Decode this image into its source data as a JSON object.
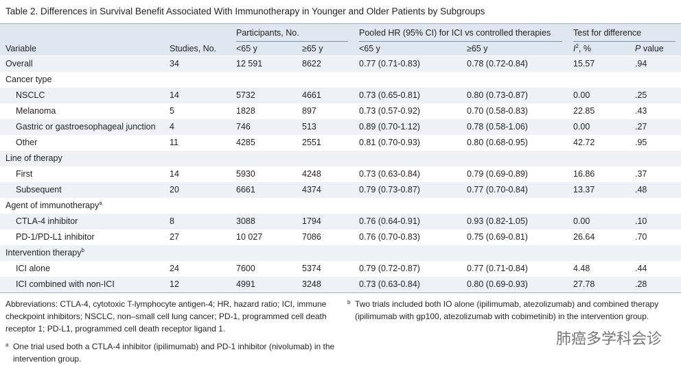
{
  "title": "Table 2. Differences in Survival Benefit Associated With Immunotherapy in Younger and Older Patients by Subgroups",
  "header": {
    "groups": [
      {
        "label": "Participants, No.",
        "from": 2,
        "to": 3
      },
      {
        "label": "Pooled HR (95% CI) for ICI vs controlled therapies",
        "from": 4,
        "to": 5
      },
      {
        "label": "Test for difference",
        "from": 6,
        "to": 7
      }
    ],
    "columns": [
      {
        "text": "Variable"
      },
      {
        "text": "Studies, No."
      },
      {
        "text": "<65 y"
      },
      {
        "text": "≥65 y"
      },
      {
        "text": "<65 y"
      },
      {
        "text": "≥65 y"
      },
      {
        "italic": "I",
        "sup": "2",
        "text": ", %"
      },
      {
        "italic": "P",
        "text": " value"
      }
    ]
  },
  "table": {
    "rows": [
      {
        "cells": [
          "Overall",
          "34",
          "12 591",
          "8622",
          "0.77 (0.71-0.83)",
          "0.78 (0.72-0.84)",
          "15.57",
          ".94"
        ]
      },
      {
        "section": "Cancer type"
      },
      {
        "cells": [
          "NSCLC",
          "14",
          "5732",
          "4661",
          "0.73 (0.65-0.81)",
          "0.80 (0.73-0.87)",
          "0.00",
          ".25"
        ]
      },
      {
        "cells": [
          "Melanoma",
          "5",
          "1828",
          "897",
          "0.73 (0.57-0.92)",
          "0.70 (0.58-0.83)",
          "22.85",
          ".43"
        ]
      },
      {
        "cells": [
          "Gastric or gastroesophageal junction",
          "4",
          "746",
          "513",
          "0.89 (0.70-1.12)",
          "0.78 (0.58-1.06)",
          "0.00",
          ".27"
        ]
      },
      {
        "cells": [
          "Other",
          "11",
          "4285",
          "2551",
          "0.81 (0.70-0.93)",
          "0.80 (0.68-0.95)",
          "42.72",
          ".95"
        ]
      },
      {
        "section": "Line of therapy"
      },
      {
        "cells": [
          "First",
          "14",
          "5930",
          "4248",
          "0.73 (0.63-0.84)",
          "0.79 (0.69-0.89)",
          "16.86",
          ".37"
        ]
      },
      {
        "cells": [
          "Subsequent",
          "20",
          "6661",
          "4374",
          "0.79 (0.73-0.87)",
          "0.77 (0.70-0.84)",
          "13.37",
          ".48"
        ]
      },
      {
        "section": "Agent of immunotherapy",
        "note": "a"
      },
      {
        "cells": [
          "CTLA-4 inhibitor",
          "8",
          "3088",
          "1794",
          "0.76 (0.64-0.91)",
          "0.93 (0.82-1.05)",
          "0.00",
          ".10"
        ]
      },
      {
        "cells": [
          "PD-1/PD-L1 inhibitor",
          "27",
          "10 027",
          "7086",
          "0.76 (0.70-0.83)",
          "0.75 (0.69-0.81)",
          "26.64",
          ".70"
        ]
      },
      {
        "section": "Intervention therapy",
        "note": "b"
      },
      {
        "cells": [
          "ICI alone",
          "24",
          "7600",
          "5374",
          "0.79 (0.72-0.87)",
          "0.77 (0.71-0.84)",
          "4.48",
          ".44"
        ]
      },
      {
        "cells": [
          "ICI combined with non-ICI",
          "12",
          "4991",
          "3248",
          "0.73 (0.63-0.84)",
          "0.80 (0.69-0.93)",
          "27.78",
          ".28"
        ]
      }
    ]
  },
  "footnotes": {
    "abbreviations": "Abbreviations: CTLA-4, cytotoxic T-lymphocyte antigen-4; HR, hazard ratio; ICI, immune checkpoint inhibitors; NSCLC, non–small cell lung cancer; PD-1, programmed cell death receptor 1; PD-L1, programmed cell death receptor ligand 1.",
    "notes": [
      {
        "marker": "a",
        "text": "One trial used both a CTLA-4 inhibitor (ipilimumab) and PD-1 inhibitor (nivolumab) in the intervention group."
      },
      {
        "marker": "b",
        "text": "Two trials included both IO alone (ipilimumab, atezolizumab) and combined therapy (ipilimumab with gp100, atezolizumab with cobimetinib) in the intervention group."
      }
    ]
  },
  "watermark": "肺癌多学科会诊"
}
